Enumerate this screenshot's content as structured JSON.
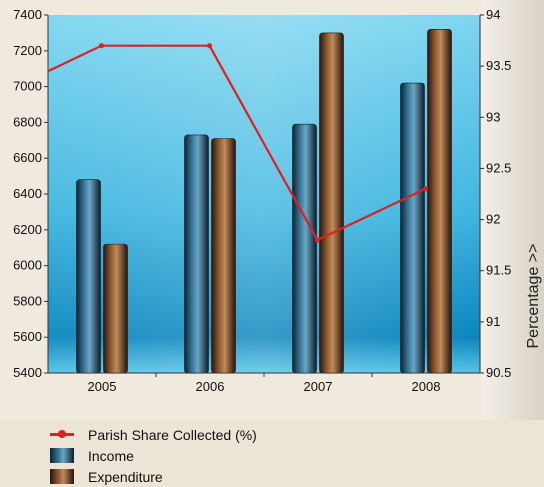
{
  "colors": {
    "income": "#2c5f80",
    "expenditure": "#7a4a2a",
    "share": "#e02020",
    "plot_bg_top": "#6fd0ee",
    "plot_bg_bottom": "#0e8fc4"
  },
  "legend": [
    {
      "key": "share",
      "label": "Parish Share Collected (%)",
      "icon": "line-marker-icon"
    },
    {
      "key": "income",
      "label": "Income",
      "icon": "bar-swatch-icon"
    },
    {
      "key": "expenditure",
      "label": "Expenditure",
      "icon": "bar-swatch-icon"
    }
  ],
  "chart_data": {
    "type": "bar",
    "categories": [
      "2005",
      "2006",
      "2007",
      "2008"
    ],
    "series": [
      {
        "name": "Income",
        "type": "bar",
        "axis": "left",
        "values": [
          6480,
          6730,
          6790,
          7020
        ]
      },
      {
        "name": "Expenditure",
        "type": "bar",
        "axis": "left",
        "values": [
          6120,
          6710,
          7300,
          7320
        ]
      },
      {
        "name": "Parish Share Collected (%)",
        "type": "line",
        "axis": "right",
        "values": [
          93.7,
          93.7,
          91.8,
          92.3
        ],
        "start_value": 93.45
      }
    ],
    "ylim_left": [
      5400,
      7400
    ],
    "yticks_left": [
      "5400",
      "5600",
      "5800",
      "6000",
      "6200",
      "6400",
      "6600",
      "6800",
      "7000",
      "7200",
      "7400"
    ],
    "ylim_right": [
      90.5,
      94
    ],
    "yticks_right": [
      "90.5",
      "91",
      "91.5",
      "92",
      "92.5",
      "93",
      "93.5",
      "94"
    ],
    "y2label": "Percentage >>",
    "grid": false,
    "legend_position": "bottom-left"
  }
}
